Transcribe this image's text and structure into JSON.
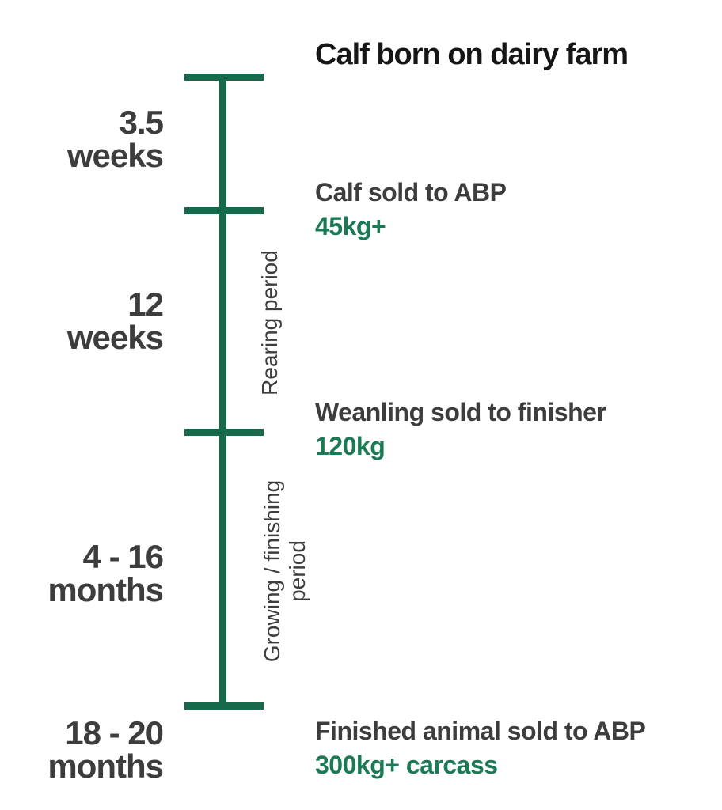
{
  "colors": {
    "green_line": "#17694c",
    "green_text": "#1b7a54",
    "heading_dark": "#161616",
    "text_gray": "#3d3d3d"
  },
  "diagram": {
    "events": [
      {
        "label": "Calf born on dairy farm",
        "value": ""
      },
      {
        "label": "Calf sold to ABP",
        "value": "45kg+"
      },
      {
        "label": "Weanling sold to finisher",
        "value": "120kg"
      },
      {
        "label": "Finished animal sold to ABP",
        "value": "300kg+ carcass"
      }
    ],
    "durations": [
      {
        "lines": [
          "3.5",
          "weeks"
        ]
      },
      {
        "lines": [
          "12",
          "weeks"
        ]
      },
      {
        "lines": [
          "4 - 16",
          "months"
        ]
      },
      {
        "lines": [
          "18 - 20",
          "months"
        ]
      }
    ],
    "periods": [
      {
        "lines": [
          "Rearing period",
          ""
        ]
      },
      {
        "lines": [
          "Growing / finishing",
          "period"
        ]
      }
    ]
  }
}
